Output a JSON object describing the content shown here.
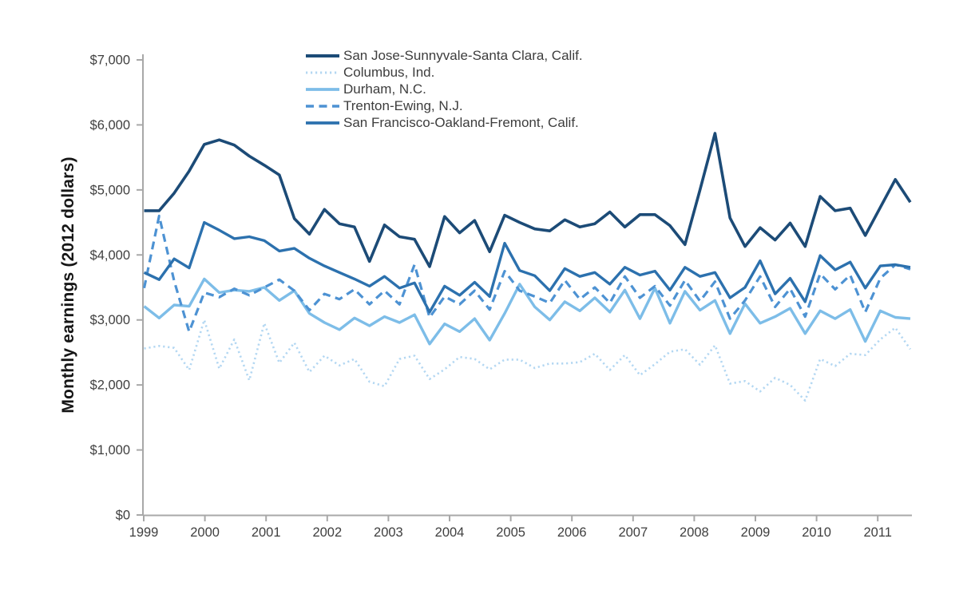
{
  "page": {
    "background": "#ffffff",
    "axis_color": "#a8a8a8",
    "tick_label_color": "#3f3f3f"
  },
  "chart_data": {
    "type": "line",
    "title": "",
    "y_axis_title": "Monthly earnings (2012 dollars)",
    "xlabel": "",
    "ylabel": "Monthly earnings (2012 dollars)",
    "ylim": [
      0,
      7000
    ],
    "grid": "off",
    "legend_position": "top-center",
    "y_tick_values": [
      0,
      1000,
      2000,
      3000,
      4000,
      5000,
      6000,
      7000
    ],
    "y_tick_labels": [
      "$0",
      "$1,000",
      "$2,000",
      "$3,000",
      "$4,000",
      "$5,000",
      "$6,000",
      "$7,000"
    ],
    "x_tick_labels": [
      "1999",
      "2000",
      "2001",
      "2002",
      "2003",
      "2004",
      "2005",
      "2006",
      "2007",
      "2008",
      "2009",
      "2010",
      "2011"
    ],
    "x_frequency": "quarterly",
    "x_range": "1999 Q1 - 2011 Q4",
    "series": [
      {
        "name": "San Jose-Sunnyvale-Santa Clara, Calif.",
        "color": "#1c4b77",
        "style": "solid",
        "stroke_width": 3.6,
        "values": [
          4680,
          4680,
          4950,
          5290,
          5700,
          5770,
          5690,
          5520,
          5380,
          5230,
          4560,
          4320,
          4700,
          4480,
          4430,
          3900,
          4460,
          4280,
          4240,
          3820,
          4590,
          4340,
          4530,
          4050,
          4610,
          4500,
          4400,
          4370,
          4540,
          4430,
          4480,
          4660,
          4430,
          4620,
          4620,
          4450,
          4160,
          5000,
          5870,
          4570,
          4130,
          4420,
          4230,
          4490,
          4130,
          4900,
          4680,
          4720,
          4300,
          4730,
          5160,
          4810
        ]
      },
      {
        "name": "Columbus, Ind.",
        "color": "#b3d7f2",
        "style": "dotted",
        "stroke_width": 2.6,
        "values": [
          2560,
          2600,
          2570,
          2230,
          3000,
          2250,
          2700,
          2070,
          2950,
          2340,
          2650,
          2200,
          2450,
          2300,
          2400,
          2050,
          1980,
          2400,
          2450,
          2090,
          2240,
          2430,
          2400,
          2240,
          2390,
          2390,
          2260,
          2330,
          2330,
          2350,
          2480,
          2230,
          2460,
          2150,
          2320,
          2510,
          2550,
          2310,
          2610,
          2020,
          2060,
          1900,
          2110,
          2000,
          1760,
          2400,
          2290,
          2480,
          2460,
          2700,
          2880,
          2550
        ]
      },
      {
        "name": "Durham, N.C.",
        "color": "#7dbde8",
        "style": "solid",
        "stroke_width": 3.4,
        "values": [
          3210,
          3030,
          3230,
          3210,
          3630,
          3420,
          3460,
          3440,
          3500,
          3300,
          3450,
          3100,
          2960,
          2850,
          3030,
          2910,
          3050,
          2960,
          3080,
          2630,
          2940,
          2820,
          3020,
          2690,
          3100,
          3550,
          3200,
          3000,
          3280,
          3140,
          3340,
          3120,
          3460,
          3020,
          3490,
          2950,
          3440,
          3150,
          3300,
          2790,
          3250,
          2950,
          3050,
          3180,
          2790,
          3140,
          3020,
          3160,
          2670,
          3140,
          3040,
          3020
        ]
      },
      {
        "name": "Trenton-Ewing, N.J.",
        "color": "#4d92d3",
        "style": "dashed",
        "stroke_width": 3.2,
        "values": [
          3490,
          4600,
          3600,
          2820,
          3420,
          3350,
          3480,
          3380,
          3500,
          3620,
          3450,
          3150,
          3400,
          3320,
          3470,
          3240,
          3450,
          3240,
          3850,
          3040,
          3360,
          3240,
          3450,
          3160,
          3750,
          3450,
          3360,
          3260,
          3610,
          3320,
          3500,
          3260,
          3670,
          3340,
          3520,
          3220,
          3610,
          3290,
          3590,
          3020,
          3300,
          3670,
          3200,
          3480,
          3050,
          3710,
          3470,
          3690,
          3120,
          3640,
          3850,
          3780
        ]
      },
      {
        "name": "San Francisco-Oakland-Fremont, Calif.",
        "color": "#2c71ae",
        "style": "solid",
        "stroke_width": 3.4,
        "values": [
          3730,
          3620,
          3940,
          3800,
          4500,
          4380,
          4250,
          4280,
          4220,
          4060,
          4100,
          3950,
          3830,
          3730,
          3630,
          3520,
          3670,
          3490,
          3570,
          3120,
          3520,
          3380,
          3580,
          3360,
          4180,
          3760,
          3680,
          3450,
          3790,
          3670,
          3730,
          3550,
          3810,
          3690,
          3750,
          3460,
          3810,
          3670,
          3730,
          3340,
          3500,
          3910,
          3400,
          3640,
          3280,
          3990,
          3770,
          3890,
          3490,
          3830,
          3850,
          3810
        ]
      }
    ]
  }
}
